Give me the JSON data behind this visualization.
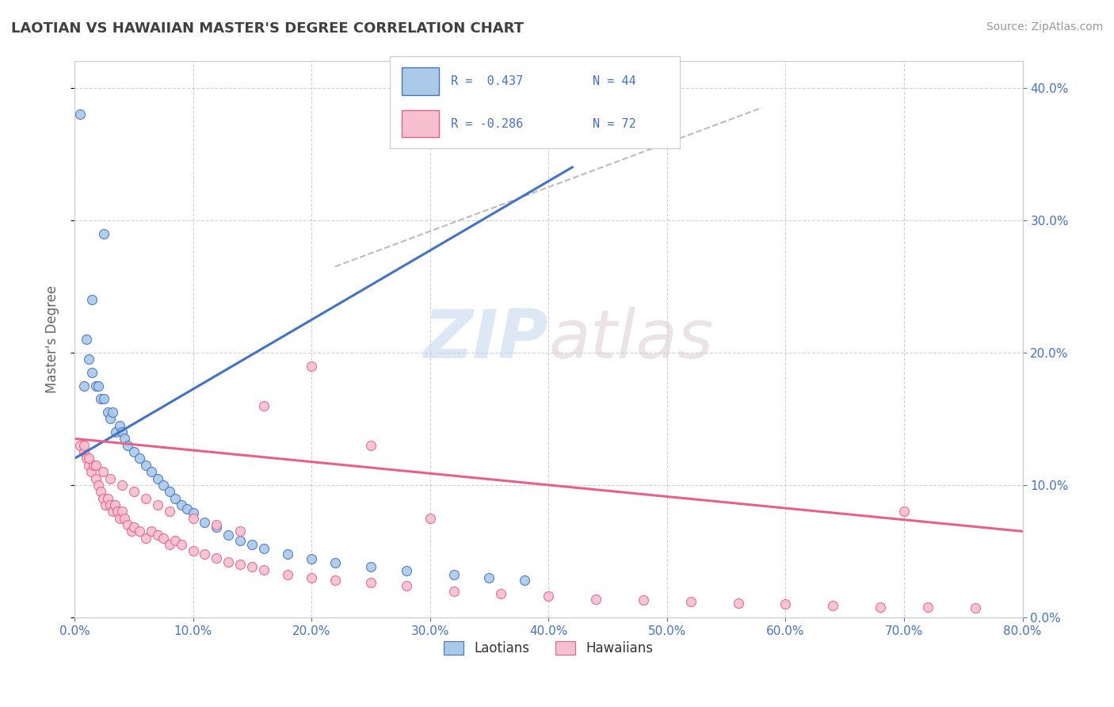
{
  "title": "LAOTIAN VS HAWAIIAN MASTER'S DEGREE CORRELATION CHART",
  "source": "Source: ZipAtlas.com",
  "ylabel": "Master's Degree",
  "legend_blue_r": "R =  0.437",
  "legend_blue_n": "N = 44",
  "legend_pink_r": "R = -0.286",
  "legend_pink_n": "N = 72",
  "legend_blue_label": "Laotians",
  "legend_pink_label": "Hawaiians",
  "watermark_zip": "ZIP",
  "watermark_atlas": "atlas",
  "blue_color": "#aac9e8",
  "pink_color": "#f8bfd0",
  "blue_edge_color": "#4472c4",
  "pink_edge_color": "#e8608a",
  "xmin": 0.0,
  "xmax": 0.8,
  "ymin": 0.0,
  "ymax": 0.42,
  "blue_dots_x": [
    0.005,
    0.008,
    0.01,
    0.012,
    0.015,
    0.018,
    0.02,
    0.022,
    0.025,
    0.028,
    0.03,
    0.032,
    0.035,
    0.038,
    0.04,
    0.042,
    0.045,
    0.05,
    0.055,
    0.06,
    0.065,
    0.07,
    0.075,
    0.08,
    0.085,
    0.09,
    0.095,
    0.1,
    0.11,
    0.12,
    0.13,
    0.14,
    0.15,
    0.16,
    0.18,
    0.2,
    0.22,
    0.25,
    0.28,
    0.32,
    0.35,
    0.38,
    0.015,
    0.025
  ],
  "blue_dots_y": [
    0.38,
    0.175,
    0.21,
    0.195,
    0.185,
    0.175,
    0.175,
    0.165,
    0.165,
    0.155,
    0.15,
    0.155,
    0.14,
    0.145,
    0.14,
    0.135,
    0.13,
    0.125,
    0.12,
    0.115,
    0.11,
    0.105,
    0.1,
    0.095,
    0.09,
    0.085,
    0.082,
    0.079,
    0.072,
    0.068,
    0.062,
    0.058,
    0.055,
    0.052,
    0.048,
    0.044,
    0.041,
    0.038,
    0.035,
    0.032,
    0.03,
    0.028,
    0.24,
    0.29
  ],
  "pink_dots_x": [
    0.005,
    0.008,
    0.01,
    0.012,
    0.014,
    0.016,
    0.018,
    0.02,
    0.022,
    0.024,
    0.026,
    0.028,
    0.03,
    0.032,
    0.034,
    0.036,
    0.038,
    0.04,
    0.042,
    0.045,
    0.048,
    0.05,
    0.055,
    0.06,
    0.065,
    0.07,
    0.075,
    0.08,
    0.085,
    0.09,
    0.1,
    0.11,
    0.12,
    0.13,
    0.14,
    0.15,
    0.16,
    0.18,
    0.2,
    0.22,
    0.25,
    0.28,
    0.32,
    0.36,
    0.4,
    0.44,
    0.48,
    0.52,
    0.56,
    0.6,
    0.64,
    0.68,
    0.72,
    0.76,
    0.008,
    0.012,
    0.018,
    0.024,
    0.03,
    0.04,
    0.05,
    0.06,
    0.07,
    0.08,
    0.1,
    0.12,
    0.14,
    0.16,
    0.2,
    0.25,
    0.3,
    0.7
  ],
  "pink_dots_y": [
    0.13,
    0.125,
    0.12,
    0.115,
    0.11,
    0.115,
    0.105,
    0.1,
    0.095,
    0.09,
    0.085,
    0.09,
    0.085,
    0.08,
    0.085,
    0.08,
    0.075,
    0.08,
    0.075,
    0.07,
    0.065,
    0.068,
    0.065,
    0.06,
    0.065,
    0.062,
    0.06,
    0.055,
    0.058,
    0.055,
    0.05,
    0.048,
    0.045,
    0.042,
    0.04,
    0.038,
    0.036,
    0.032,
    0.03,
    0.028,
    0.026,
    0.024,
    0.02,
    0.018,
    0.016,
    0.014,
    0.013,
    0.012,
    0.011,
    0.01,
    0.009,
    0.008,
    0.008,
    0.007,
    0.13,
    0.12,
    0.115,
    0.11,
    0.105,
    0.1,
    0.095,
    0.09,
    0.085,
    0.08,
    0.075,
    0.07,
    0.065,
    0.16,
    0.19,
    0.13,
    0.075,
    0.08
  ],
  "blue_line_x": [
    0.0,
    0.42
  ],
  "blue_line_y": [
    0.12,
    0.34
  ],
  "pink_line_x": [
    0.0,
    0.8
  ],
  "pink_line_y": [
    0.135,
    0.065
  ],
  "gray_line_x": [
    0.22,
    0.58
  ],
  "gray_line_y": [
    0.265,
    0.385
  ],
  "background_color": "#ffffff",
  "grid_color": "#cccccc",
  "title_color": "#404040",
  "axis_color": "#4472c4",
  "label_color": "#666666"
}
